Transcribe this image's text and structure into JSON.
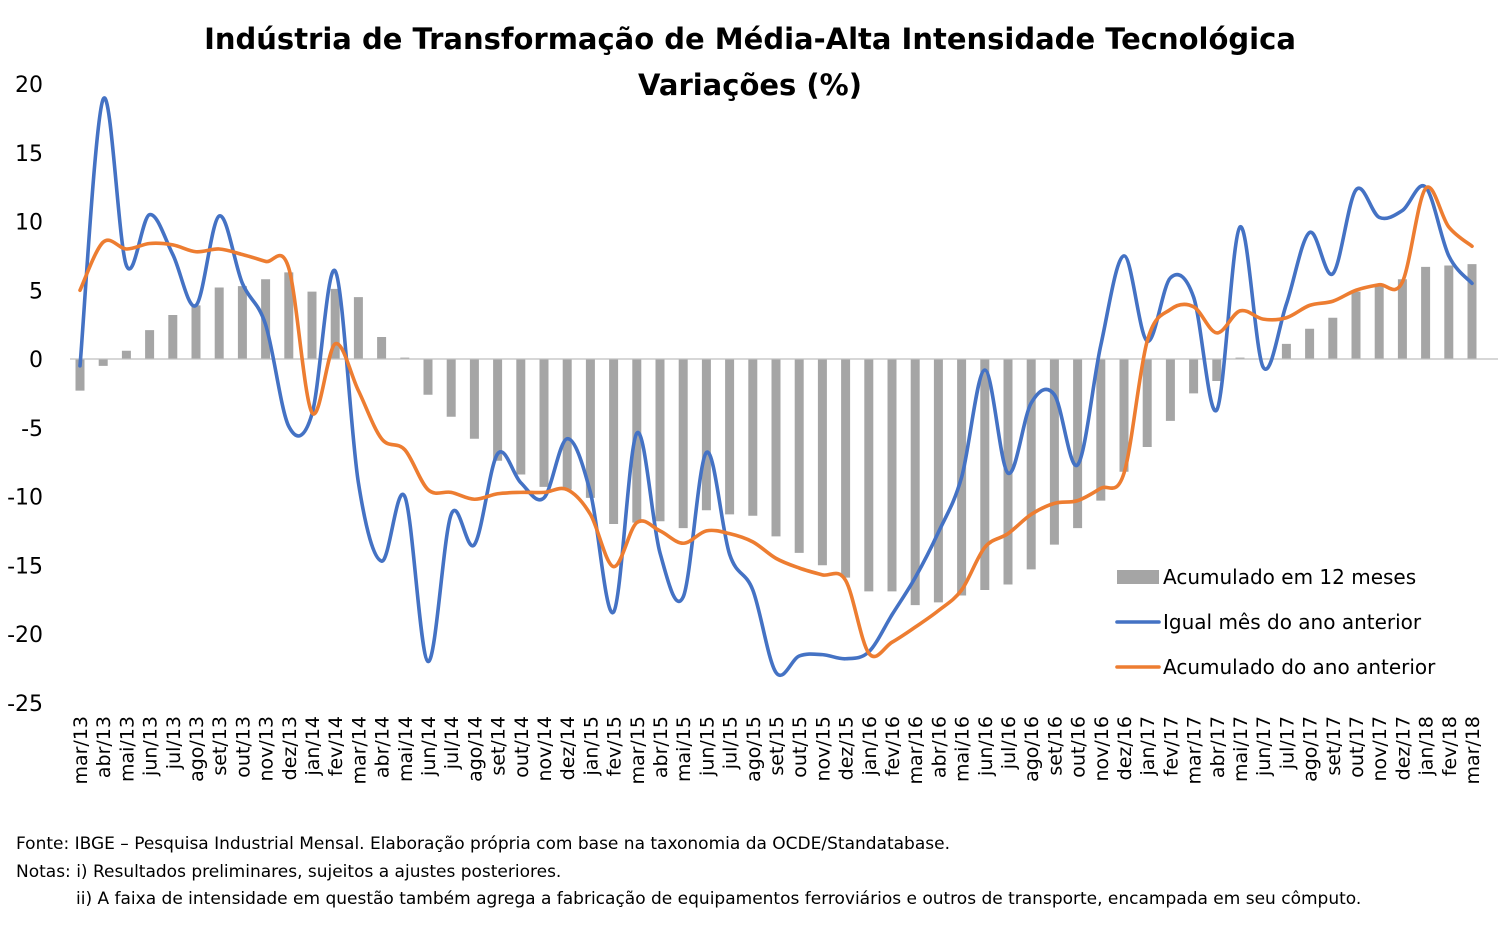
{
  "chart_data": {
    "type": "bar+line",
    "title": "Indústria de Transformação de Média-Alta Intensidade Tecnológica",
    "subtitle": "Variações (%)",
    "ylim": [
      -25,
      20
    ],
    "yticks": [
      20,
      15,
      10,
      5,
      0,
      -5,
      -10,
      -15,
      -20,
      -25
    ],
    "grid": false,
    "legend_position": "lower-right",
    "categories": [
      "mar/13",
      "abr/13",
      "mai/13",
      "jun/13",
      "jul/13",
      "ago/13",
      "set/13",
      "out/13",
      "nov/13",
      "dez/13",
      "jan/14",
      "fev/14",
      "mar/14",
      "abr/14",
      "mai/14",
      "jun/14",
      "jul/14",
      "ago/14",
      "set/14",
      "out/14",
      "nov/14",
      "dez/14",
      "jan/15",
      "fev/15",
      "mar/15",
      "abr/15",
      "mai/15",
      "jun/15",
      "jul/15",
      "ago/15",
      "set/15",
      "out/15",
      "nov/15",
      "dez/15",
      "jan/16",
      "fev/16",
      "mar/16",
      "abr/16",
      "mai/16",
      "jun/16",
      "jul/16",
      "ago/16",
      "set/16",
      "out/16",
      "nov/16",
      "dez/16",
      "jan/17",
      "fev/17",
      "mar/17",
      "abr/17",
      "mai/17",
      "jun/17",
      "jul/17",
      "ago/17",
      "set/17",
      "out/17",
      "nov/17",
      "dez/17",
      "jan/18",
      "fev/18",
      "mar/18"
    ],
    "series": [
      {
        "name": "Acumulado em 12 meses",
        "type": "bar",
        "color": "#A5A5A5",
        "values": [
          -2.3,
          -0.5,
          0.6,
          2.1,
          3.2,
          3.9,
          5.2,
          5.3,
          5.8,
          6.3,
          4.9,
          5.1,
          4.5,
          1.6,
          0.1,
          -2.6,
          -4.2,
          -5.8,
          -7.4,
          -8.4,
          -9.3,
          -9.5,
          -10.1,
          -12.0,
          -11.9,
          -11.8,
          -12.3,
          -11.0,
          -11.3,
          -11.4,
          -12.9,
          -14.1,
          -15.0,
          -15.9,
          -16.9,
          -16.9,
          -17.9,
          -17.7,
          -17.2,
          -16.8,
          -16.4,
          -15.3,
          -13.5,
          -12.3,
          -10.3,
          -8.2,
          -6.4,
          -4.5,
          -2.5,
          -1.6,
          0.1,
          0.0,
          1.1,
          2.2,
          3.0,
          4.9,
          5.4,
          5.8,
          6.7,
          6.8,
          6.9
        ]
      },
      {
        "name": "Igual mês do ano anterior",
        "type": "line",
        "color": "#4472C4",
        "values": [
          -0.5,
          18.9,
          6.8,
          10.5,
          7.6,
          3.9,
          10.4,
          5.5,
          2.5,
          -4.9,
          -4.0,
          6.4,
          -9.0,
          -14.7,
          -10.0,
          -22.0,
          -11.3,
          -13.5,
          -6.9,
          -9.0,
          -10.1,
          -5.8,
          -9.7,
          -18.4,
          -5.4,
          -14.1,
          -17.3,
          -6.8,
          -14.2,
          -16.8,
          -22.8,
          -21.6,
          -21.5,
          -21.8,
          -21.3,
          -18.6,
          -15.9,
          -12.6,
          -8.6,
          -0.8,
          -8.3,
          -3.2,
          -2.6,
          -7.7,
          1.0,
          7.5,
          1.3,
          5.9,
          4.5,
          -3.7,
          9.6,
          -0.6,
          4.0,
          9.2,
          6.2,
          12.3,
          10.3,
          10.8,
          12.5,
          7.5,
          5.5
        ]
      },
      {
        "name": "Acumulado do ano anterior",
        "type": "line",
        "color": "#ED7D31",
        "values": [
          5.0,
          8.5,
          8.0,
          8.4,
          8.3,
          7.8,
          8.0,
          7.6,
          7.1,
          6.6,
          -3.9,
          1.1,
          -2.3,
          -5.8,
          -6.6,
          -9.5,
          -9.7,
          -10.2,
          -9.8,
          -9.7,
          -9.7,
          -9.5,
          -11.3,
          -15.1,
          -11.9,
          -12.5,
          -13.4,
          -12.5,
          -12.7,
          -13.3,
          -14.5,
          -15.2,
          -15.7,
          -16.1,
          -21.4,
          -20.6,
          -19.5,
          -18.3,
          -16.8,
          -13.7,
          -12.7,
          -11.3,
          -10.5,
          -10.3,
          -9.4,
          -8.3,
          1.3,
          3.6,
          3.8,
          1.9,
          3.5,
          2.9,
          3.0,
          3.9,
          4.2,
          5.0,
          5.4,
          5.6,
          12.4,
          9.6,
          8.2
        ]
      }
    ]
  },
  "notes": {
    "fonte": "Fonte: IBGE – Pesquisa Industrial Mensal. Elaboração própria com base na taxonomia da OCDE/Standatabase.",
    "notas1": "Notas: i) Resultados preliminares, sujeitos a ajustes posteriores.",
    "notas2": "ii) A faixa de intensidade em questão também agrega a fabricação de equipamentos ferroviários e outros de transporte, encampada em seu cômputo."
  }
}
